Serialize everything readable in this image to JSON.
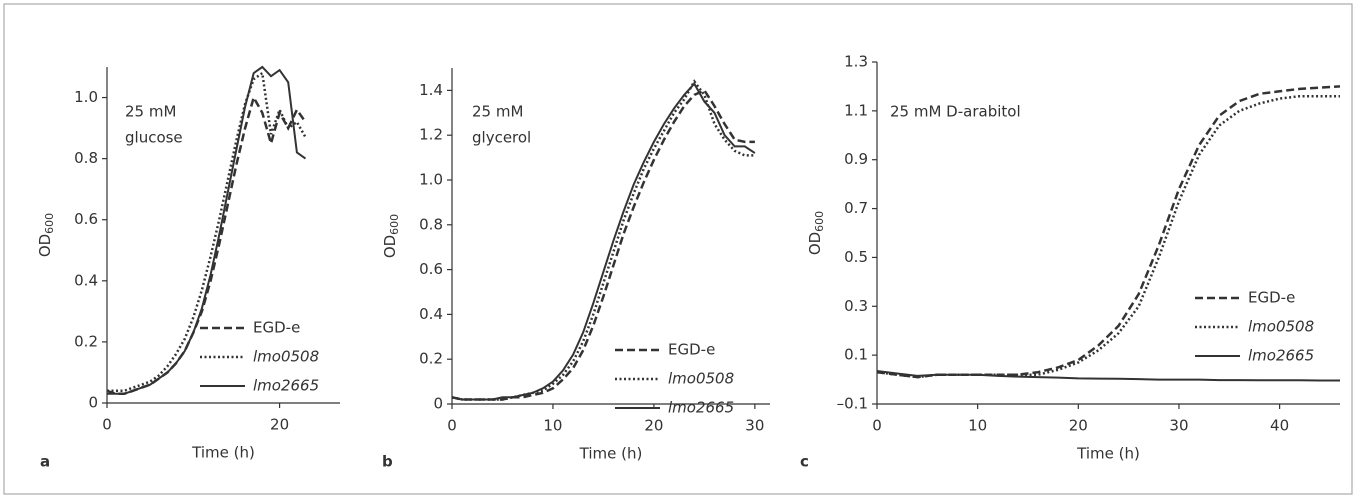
{
  "chart_data": [
    {
      "type": "line",
      "panel_label": "a",
      "annotation": [
        "25 mM",
        "glucose"
      ],
      "xlabel": "Time (h)",
      "ylabel": {
        "text": "OD",
        "subscript": "600"
      },
      "legend": "lower right",
      "xlim": [
        0,
        27
      ],
      "ylim": [
        0,
        1.1
      ],
      "xticks": [
        0,
        20
      ],
      "yticks": [
        0,
        0.2,
        0.4,
        0.6,
        0.8,
        {
          "value": 1,
          "label": "1.0"
        }
      ],
      "x": [
        0,
        1,
        2,
        3,
        4,
        5,
        6,
        7,
        8,
        9,
        10,
        11,
        12,
        13,
        14,
        15,
        16,
        17,
        18,
        19,
        20,
        21,
        22,
        23
      ],
      "series": [
        {
          "name": "EGD-e",
          "color": "#333333",
          "dash": "dashed",
          "values": [
            0.04,
            0.03,
            0.03,
            0.04,
            0.05,
            0.06,
            0.08,
            0.1,
            0.13,
            0.17,
            0.23,
            0.3,
            0.4,
            0.52,
            0.65,
            0.78,
            0.9,
            1.0,
            0.95,
            0.85,
            0.95,
            0.9,
            0.96,
            0.92
          ]
        },
        {
          "name": "lmo0508",
          "color": "#333333",
          "dash": "dotted",
          "values": [
            0.04,
            0.04,
            0.04,
            0.05,
            0.06,
            0.07,
            0.09,
            0.12,
            0.16,
            0.21,
            0.28,
            0.37,
            0.48,
            0.6,
            0.73,
            0.86,
            0.98,
            1.06,
            1.08,
            0.88,
            0.96,
            0.9,
            0.92,
            0.87
          ]
        },
        {
          "name": "lmo2665",
          "color": "#333333",
          "dash": "solid",
          "values": [
            0.03,
            0.03,
            0.03,
            0.04,
            0.05,
            0.06,
            0.08,
            0.1,
            0.13,
            0.17,
            0.23,
            0.31,
            0.42,
            0.55,
            0.69,
            0.83,
            0.97,
            1.08,
            1.1,
            1.07,
            1.09,
            1.05,
            0.82,
            0.8
          ]
        }
      ]
    },
    {
      "type": "line",
      "panel_label": "b",
      "annotation": [
        "25 mM",
        "glycerol"
      ],
      "xlabel": "Time (h)",
      "ylabel": {
        "text": "OD",
        "subscript": "600"
      },
      "legend": "lower right",
      "xlim": [
        0,
        31.5
      ],
      "ylim": [
        0,
        1.5
      ],
      "xticks": [
        0,
        10,
        20,
        30
      ],
      "yticks": [
        0,
        0.2,
        0.4,
        0.6,
        0.8,
        {
          "value": 1,
          "label": "1.0"
        },
        1.2,
        1.4
      ],
      "x": [
        0,
        1,
        2,
        3,
        4,
        5,
        6,
        7,
        8,
        9,
        10,
        11,
        12,
        13,
        14,
        15,
        16,
        17,
        18,
        19,
        20,
        21,
        22,
        23,
        24,
        25,
        26,
        27,
        28,
        29,
        30
      ],
      "series": [
        {
          "name": "EGD-e",
          "color": "#333333",
          "dash": "dashed",
          "values": [
            0.03,
            0.02,
            0.02,
            0.02,
            0.02,
            0.02,
            0.03,
            0.03,
            0.04,
            0.05,
            0.07,
            0.11,
            0.16,
            0.24,
            0.35,
            0.48,
            0.62,
            0.76,
            0.88,
            0.99,
            1.09,
            1.18,
            1.26,
            1.33,
            1.38,
            1.4,
            1.33,
            1.25,
            1.18,
            1.17,
            1.17
          ]
        },
        {
          "name": "lmo0508",
          "color": "#333333",
          "dash": "dotted",
          "values": [
            0.03,
            0.02,
            0.02,
            0.02,
            0.02,
            0.02,
            0.03,
            0.04,
            0.05,
            0.06,
            0.09,
            0.13,
            0.19,
            0.28,
            0.4,
            0.54,
            0.68,
            0.82,
            0.94,
            1.05,
            1.14,
            1.22,
            1.3,
            1.36,
            1.44,
            1.38,
            1.25,
            1.18,
            1.13,
            1.11,
            1.11
          ]
        },
        {
          "name": "lmo2665",
          "color": "#333333",
          "dash": "solid",
          "values": [
            0.03,
            0.02,
            0.02,
            0.02,
            0.02,
            0.03,
            0.03,
            0.04,
            0.05,
            0.07,
            0.1,
            0.15,
            0.22,
            0.32,
            0.45,
            0.59,
            0.73,
            0.86,
            0.98,
            1.08,
            1.17,
            1.25,
            1.32,
            1.38,
            1.43,
            1.35,
            1.3,
            1.2,
            1.15,
            1.15,
            1.12
          ]
        }
      ]
    },
    {
      "type": "line",
      "panel_label": "c",
      "annotation": [
        "25 mM D-arabitol"
      ],
      "xlabel": "Time (h)",
      "ylabel": {
        "text": "OD",
        "subscript": "600"
      },
      "legend": "lower right",
      "xlim": [
        0,
        46
      ],
      "ylim": [
        -0.1,
        1.3
      ],
      "xticks": [
        0,
        10,
        20,
        30,
        40
      ],
      "yticks": [
        {
          "value": -0.1,
          "label": "–0.1"
        },
        0.1,
        0.3,
        0.5,
        0.7,
        0.9,
        1.1,
        1.3
      ],
      "x": [
        0,
        2,
        4,
        6,
        8,
        10,
        12,
        14,
        16,
        18,
        20,
        22,
        24,
        26,
        28,
        30,
        32,
        34,
        36,
        38,
        40,
        42,
        44,
        46
      ],
      "series": [
        {
          "name": "EGD-e",
          "color": "#333333",
          "dash": "dashed",
          "values": [
            0.03,
            0.02,
            0.01,
            0.02,
            0.02,
            0.02,
            0.02,
            0.02,
            0.03,
            0.05,
            0.08,
            0.14,
            0.22,
            0.35,
            0.55,
            0.78,
            0.96,
            1.08,
            1.14,
            1.17,
            1.18,
            1.19,
            1.195,
            1.2
          ]
        },
        {
          "name": "lmo0508",
          "color": "#333333",
          "dash": "dotted",
          "values": [
            0.03,
            0.02,
            0.01,
            0.02,
            0.02,
            0.02,
            0.02,
            0.02,
            0.02,
            0.04,
            0.07,
            0.12,
            0.19,
            0.3,
            0.5,
            0.73,
            0.92,
            1.04,
            1.1,
            1.13,
            1.15,
            1.16,
            1.16,
            1.16
          ]
        },
        {
          "name": "lmo2665",
          "color": "#333333",
          "dash": "solid",
          "values": [
            0.035,
            0.025,
            0.015,
            0.02,
            0.02,
            0.02,
            0.015,
            0.012,
            0.01,
            0.008,
            0.005,
            0.004,
            0.003,
            0.002,
            0,
            0,
            0,
            -0.002,
            -0.002,
            -0.003,
            -0.003,
            -0.003,
            -0.004,
            -0.004
          ]
        }
      ]
    }
  ]
}
